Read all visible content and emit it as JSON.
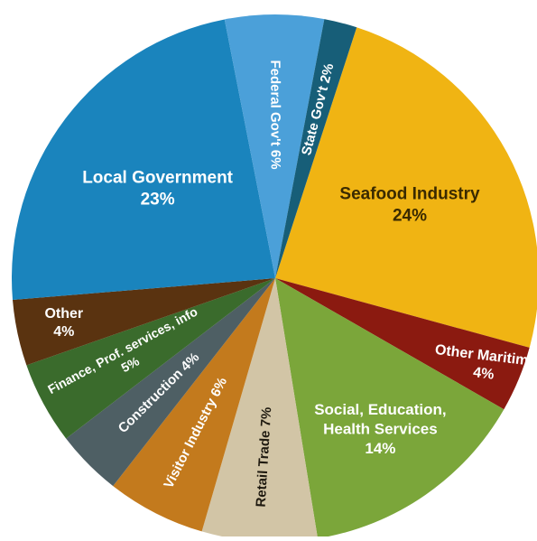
{
  "chart_data": {
    "type": "pie",
    "start_angle_deg": -72,
    "direction": "clockwise",
    "slices": [
      {
        "label_lines": [
          "Seafood Industry"
        ],
        "value_label": "24%",
        "value": 24,
        "color": "#f0b413",
        "text_color": "#3a2a00"
      },
      {
        "label_lines": [
          "Other Maritime"
        ],
        "value_label": "4%",
        "value": 4,
        "color": "#8b1a10",
        "text_color": "#ffffff"
      },
      {
        "label_lines": [
          "Social, Education,",
          "Health Services"
        ],
        "value_label": "14%",
        "value": 14,
        "color": "#7ba63a",
        "text_color": "#ffffff"
      },
      {
        "label_lines": [
          "Retail Trade 7%"
        ],
        "value_label": "",
        "value": 7,
        "color": "#d2c5a6",
        "text_color": "#1f1a10"
      },
      {
        "label_lines": [
          "Visitor Industry 6%"
        ],
        "value_label": "",
        "value": 6,
        "color": "#c37a1d",
        "text_color": "#ffffff"
      },
      {
        "label_lines": [
          "Construction 4%"
        ],
        "value_label": "",
        "value": 4,
        "color": "#4e5f64",
        "text_color": "#ffffff"
      },
      {
        "label_lines": [
          "Finance, Prof. services, info"
        ],
        "value_label": "5%",
        "value": 5,
        "color": "#3a6b2c",
        "text_color": "#ffffff"
      },
      {
        "label_lines": [
          "Other"
        ],
        "value_label": "4%",
        "value": 4,
        "color": "#5a3310",
        "text_color": "#ffffff"
      },
      {
        "label_lines": [
          "Local Government"
        ],
        "value_label": "23%",
        "value": 23,
        "color": "#1a84bd",
        "text_color": "#ffffff"
      },
      {
        "label_lines": [
          "Federal Gov't 6%"
        ],
        "value_label": "",
        "value": 6,
        "color": "#4ba0d9",
        "text_color": "#ffffff"
      },
      {
        "label_lines": [
          "State Gov't 2%"
        ],
        "value_label": "",
        "value": 2,
        "color": "#175e78",
        "text_color": "#ffffff"
      }
    ]
  }
}
